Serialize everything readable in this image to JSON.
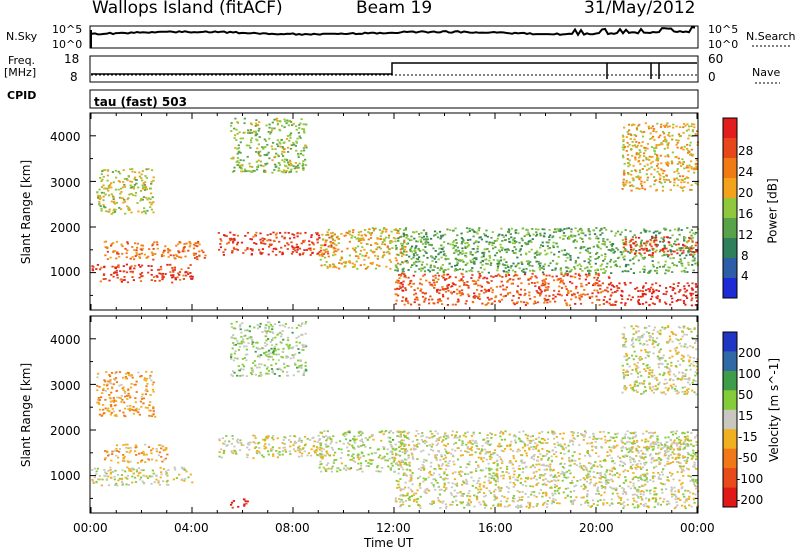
{
  "header": {
    "site": "Wallops Island (fitACF)",
    "beam": "Beam 19",
    "date": "31/May/2012"
  },
  "panel_labels": {
    "nsky": "N.Sky",
    "nsearch": "N.Search",
    "freq": "Freq.",
    "freq_unit": "[MHz]",
    "nave": "Nave",
    "cpid": "CPID",
    "cpid_value": "tau (fast) 503"
  },
  "noise_axis": {
    "left_top": "10^5",
    "left_bottom": "10^0",
    "right_top": "10^5",
    "right_bottom": "10^0"
  },
  "freq_axis": {
    "left_top": "18",
    "left_bottom": "8",
    "right_top": "60",
    "right_bottom": "0"
  },
  "xaxis": {
    "label": "Time UT",
    "ticks": [
      "00:00",
      "04:00",
      "08:00",
      "12:00",
      "16:00",
      "20:00",
      "00:00"
    ]
  },
  "yaxis_label": "Slant Range [km]",
  "y_ticks": [
    "1000",
    "2000",
    "3000",
    "4000"
  ],
  "power_scale": {
    "label": "Power [dB]",
    "ticks": [
      "4",
      "8",
      "12",
      "16",
      "20",
      "24",
      "28"
    ],
    "colors": [
      "#1c2bd6",
      "#2e5da8",
      "#2f7f5c",
      "#58a34a",
      "#8fc83c",
      "#f2a21b",
      "#f07a14",
      "#e7451a",
      "#e11d1d"
    ]
  },
  "velocity_scale": {
    "label": "Velocity [m s^-1]",
    "ticks": [
      "200",
      "100",
      "50",
      "15",
      "-15",
      "-50",
      "-100",
      "-200"
    ],
    "colors": [
      "#1f36c4",
      "#2f6aa6",
      "#3f9c4a",
      "#84cc3a",
      "#c8c8c0",
      "#f0b020",
      "#f07818",
      "#e84a1a",
      "#e01818"
    ]
  },
  "chart_data": [
    {
      "type": "heatmap",
      "ylabel": "Slant Range [km]",
      "xlabel": "Time UT",
      "x_range": [
        "00:00",
        "00:00"
      ],
      "ylim": [
        180,
        4500
      ],
      "quantity": "Power",
      "unit": "dB",
      "scale_range": [
        0,
        30
      ],
      "echo_regions": [
        {
          "t_start": 0.0,
          "t_end": 4.0,
          "range_start": 800,
          "range_end": 1200,
          "value": 26
        },
        {
          "t_start": 0.5,
          "t_end": 4.5,
          "range_start": 1300,
          "range_end": 1700,
          "value": 22
        },
        {
          "t_start": 0.2,
          "t_end": 2.5,
          "range_start": 2300,
          "range_end": 3300,
          "value": 16
        },
        {
          "t_start": 5.0,
          "t_end": 9.5,
          "range_start": 1400,
          "range_end": 1900,
          "value": 26
        },
        {
          "t_start": 5.5,
          "t_end": 8.5,
          "range_start": 3200,
          "range_end": 4400,
          "value": 14
        },
        {
          "t_start": 9.0,
          "t_end": 12.5,
          "range_start": 1100,
          "range_end": 2000,
          "value": 18
        },
        {
          "t_start": 12.0,
          "t_end": 20.5,
          "range_start": 300,
          "range_end": 1000,
          "value": 24
        },
        {
          "t_start": 12.0,
          "t_end": 24.0,
          "range_start": 1000,
          "range_end": 2000,
          "value": 12
        },
        {
          "t_start": 20.5,
          "t_end": 24.0,
          "range_start": 300,
          "range_end": 800,
          "value": 28
        },
        {
          "t_start": 21.0,
          "t_end": 24.0,
          "range_start": 1400,
          "range_end": 1800,
          "value": 26
        },
        {
          "t_start": 21.0,
          "t_end": 24.0,
          "range_start": 2800,
          "range_end": 4300,
          "value": 18
        }
      ]
    },
    {
      "type": "heatmap",
      "ylabel": "Slant Range [km]",
      "xlabel": "Time UT",
      "x_range": [
        "00:00",
        "00:00"
      ],
      "ylim": [
        180,
        4500
      ],
      "quantity": "Velocity",
      "unit": "m s^-1",
      "scale_range": [
        -200,
        200
      ],
      "echo_regions": [
        {
          "t_start": 0.0,
          "t_end": 4.0,
          "range_start": 800,
          "range_end": 1200,
          "value": 0
        },
        {
          "t_start": 0.5,
          "t_end": 3.0,
          "range_start": 1300,
          "range_end": 1700,
          "value": -60
        },
        {
          "t_start": 0.2,
          "t_end": 2.5,
          "range_start": 2300,
          "range_end": 3300,
          "value": -60
        },
        {
          "t_start": 5.0,
          "t_end": 9.5,
          "range_start": 1400,
          "range_end": 1900,
          "value": 0
        },
        {
          "t_start": 5.5,
          "t_end": 8.5,
          "range_start": 3200,
          "range_end": 4400,
          "value": 30
        },
        {
          "t_start": 9.0,
          "t_end": 12.5,
          "range_start": 1100,
          "range_end": 2000,
          "value": 20
        },
        {
          "t_start": 12.0,
          "t_end": 24.0,
          "range_start": 300,
          "range_end": 1000,
          "value": 0
        },
        {
          "t_start": 12.0,
          "t_end": 24.0,
          "range_start": 1000,
          "range_end": 2000,
          "value": 0
        },
        {
          "t_start": 5.5,
          "t_end": 6.2,
          "range_start": 300,
          "range_end": 500,
          "value": -180
        },
        {
          "t_start": 21.0,
          "t_end": 24.0,
          "range_start": 1400,
          "range_end": 1800,
          "value": 0
        },
        {
          "t_start": 21.0,
          "t_end": 24.0,
          "range_start": 2800,
          "range_end": 4300,
          "value": 0
        }
      ]
    }
  ]
}
